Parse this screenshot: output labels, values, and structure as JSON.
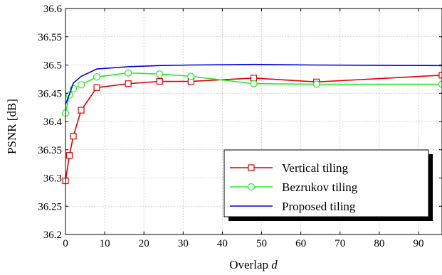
{
  "chart_data": {
    "type": "line",
    "xlabel": "Overlap",
    "xlabel_var": "d",
    "ylabel": "PSNR [dB]",
    "xlim": [
      0,
      96
    ],
    "ylim": [
      36.2,
      36.6
    ],
    "xticks": [
      0,
      10,
      20,
      30,
      40,
      50,
      60,
      70,
      80,
      90
    ],
    "yticks": [
      36.2,
      36.25,
      36.3,
      36.35,
      36.4,
      36.45,
      36.5,
      36.55,
      36.6
    ],
    "grid": true,
    "legend_position": "bottom-right",
    "series": [
      {
        "name": "Vertical tiling",
        "color": "#e00000",
        "marker": "square",
        "x": [
          0,
          1,
          2,
          4,
          8,
          16,
          24,
          32,
          48,
          64,
          96
        ],
        "y": [
          36.295,
          36.34,
          36.374,
          36.42,
          36.46,
          36.467,
          36.471,
          36.471,
          36.477,
          36.47,
          36.482
        ]
      },
      {
        "name": "Bezrukov tiling",
        "color": "#22ee22",
        "marker": "circle",
        "x": [
          0,
          1,
          2,
          4,
          8,
          16,
          24,
          32,
          48,
          64,
          96
        ],
        "y": [
          36.415,
          36.447,
          36.458,
          36.465,
          36.479,
          36.486,
          36.484,
          36.48,
          36.467,
          36.466,
          36.466
        ]
      },
      {
        "name": "Proposed tiling",
        "color": "#0000dd",
        "marker": "none",
        "x": [
          0,
          1,
          2,
          4,
          8,
          16,
          24,
          32,
          48,
          64,
          96
        ],
        "y": [
          36.43,
          36.448,
          36.468,
          36.48,
          36.493,
          36.497,
          36.499,
          36.5,
          36.501,
          36.5,
          36.499
        ]
      }
    ]
  }
}
